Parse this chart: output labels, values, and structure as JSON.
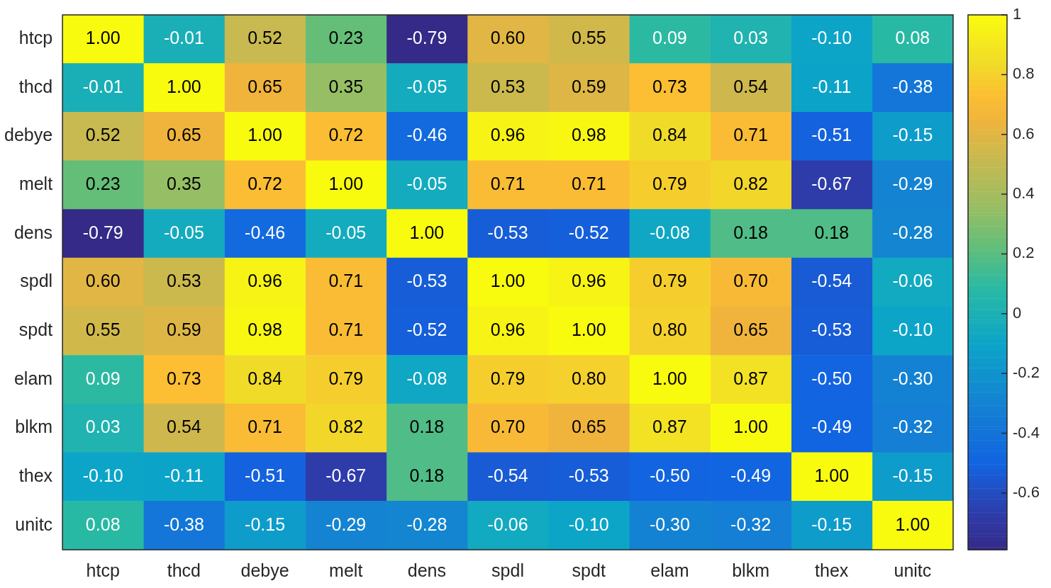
{
  "chart_data": {
    "type": "heatmap",
    "categories": [
      "htcp",
      "thcd",
      "debye",
      "melt",
      "dens",
      "spdl",
      "spdt",
      "elam",
      "blkm",
      "thex",
      "unitc"
    ],
    "y_categories": [
      "htcp",
      "thcd",
      "debye",
      "melt",
      "dens",
      "spdl",
      "spdt",
      "elam",
      "blkm",
      "thex",
      "unitc"
    ],
    "cells": [
      [
        1.0,
        -0.01,
        0.52,
        0.23,
        -0.79,
        0.6,
        0.55,
        0.09,
        0.03,
        -0.1,
        0.08
      ],
      [
        -0.01,
        1.0,
        0.65,
        0.35,
        -0.05,
        0.53,
        0.59,
        0.73,
        0.54,
        -0.11,
        -0.38
      ],
      [
        0.52,
        0.65,
        1.0,
        0.72,
        -0.46,
        0.96,
        0.98,
        0.84,
        0.71,
        -0.51,
        -0.15
      ],
      [
        0.23,
        0.35,
        0.72,
        1.0,
        -0.05,
        0.71,
        0.71,
        0.79,
        0.82,
        -0.67,
        -0.29
      ],
      [
        -0.79,
        -0.05,
        -0.46,
        -0.05,
        1.0,
        -0.53,
        -0.52,
        -0.08,
        0.18,
        0.18,
        -0.28
      ],
      [
        0.6,
        0.53,
        0.96,
        0.71,
        -0.53,
        1.0,
        0.96,
        0.79,
        0.7,
        -0.54,
        -0.06
      ],
      [
        0.55,
        0.59,
        0.98,
        0.71,
        -0.52,
        0.96,
        1.0,
        0.8,
        0.65,
        -0.53,
        -0.1
      ],
      [
        0.09,
        0.73,
        0.84,
        0.79,
        -0.08,
        0.79,
        0.8,
        1.0,
        0.87,
        -0.5,
        -0.3
      ],
      [
        0.03,
        0.54,
        0.71,
        0.82,
        0.18,
        0.7,
        0.65,
        0.87,
        1.0,
        -0.49,
        -0.32
      ],
      [
        -0.1,
        -0.11,
        -0.51,
        -0.67,
        0.18,
        -0.54,
        -0.53,
        -0.5,
        -0.49,
        1.0,
        -0.15
      ],
      [
        0.08,
        -0.38,
        -0.15,
        -0.29,
        -0.28,
        -0.06,
        -0.1,
        -0.3,
        -0.32,
        -0.15,
        1.0
      ]
    ],
    "cell_labels": [
      [
        "1.00",
        "-0.01",
        "0.52",
        "0.23",
        "-0.79",
        "0.60",
        "0.55",
        "0.09",
        "0.03",
        "-0.10",
        "0.08"
      ],
      [
        "-0.01",
        "1.00",
        "0.65",
        "0.35",
        "-0.05",
        "0.53",
        "0.59",
        "0.73",
        "0.54",
        "-0.11",
        "-0.38"
      ],
      [
        "0.52",
        "0.65",
        "1.00",
        "0.72",
        "-0.46",
        "0.96",
        "0.98",
        "0.84",
        "0.71",
        "-0.51",
        "-0.15"
      ],
      [
        "0.23",
        "0.35",
        "0.72",
        "1.00",
        "-0.05",
        "0.71",
        "0.71",
        "0.79",
        "0.82",
        "-0.67",
        "-0.29"
      ],
      [
        "-0.79",
        "-0.05",
        "-0.46",
        "-0.05",
        "1.00",
        "-0.53",
        "-0.52",
        "-0.08",
        "0.18",
        "0.18",
        "-0.28"
      ],
      [
        "0.60",
        "0.53",
        "0.96",
        "0.71",
        "-0.53",
        "1.00",
        "0.96",
        "0.79",
        "0.70",
        "-0.54",
        "-0.06"
      ],
      [
        "0.55",
        "0.59",
        "0.98",
        "0.71",
        "-0.52",
        "0.96",
        "1.00",
        "0.80",
        "0.65",
        "-0.53",
        "-0.10"
      ],
      [
        "0.09",
        "0.73",
        "0.84",
        "0.79",
        "-0.08",
        "0.79",
        "0.80",
        "1.00",
        "0.87",
        "-0.50",
        "-0.30"
      ],
      [
        "0.03",
        "0.54",
        "0.71",
        "0.82",
        "0.18",
        "0.70",
        "0.65",
        "0.87",
        "1.00",
        "-0.49",
        "-0.32"
      ],
      [
        "-0.10",
        "-0.11",
        "-0.51",
        "-0.67",
        "0.18",
        "-0.54",
        "-0.53",
        "-0.50",
        "-0.49",
        "1.00",
        "-0.15"
      ],
      [
        "0.08",
        "-0.38",
        "-0.15",
        "-0.29",
        "-0.28",
        "-0.06",
        "-0.10",
        "-0.30",
        "-0.32",
        "-0.15",
        "1.00"
      ]
    ],
    "clim": [
      -0.79,
      1
    ],
    "cticks": [
      -0.6,
      -0.4,
      -0.2,
      0,
      0.2,
      0.4,
      0.6,
      0.8,
      1
    ],
    "data_labels": true
  }
}
